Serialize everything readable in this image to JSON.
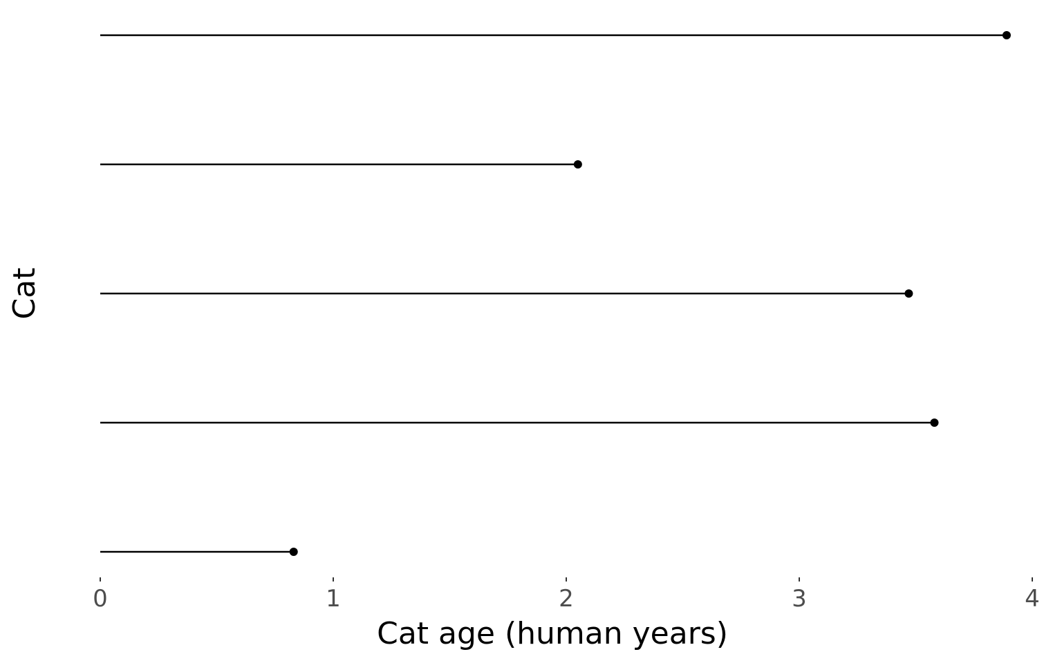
{
  "chart_data": {
    "type": "lollipop",
    "orientation": "horizontal",
    "title": "",
    "xlabel": "Cat age (human years)",
    "ylabel": "Cat",
    "xlim": [
      0,
      4
    ],
    "x_ticks": [
      0,
      1,
      2,
      3,
      4
    ],
    "x_tick_labels": [
      "0",
      "1",
      "2",
      "3",
      "4"
    ],
    "y_tick_labels_visible": false,
    "values": [
      3.89,
      2.05,
      3.47,
      3.58,
      0.83
    ],
    "grid": false,
    "legend": "none",
    "colors": {
      "stem": "#000000",
      "dot": "#000000",
      "tick_label": "#4d4d4d",
      "axis_title": "#000000"
    }
  }
}
